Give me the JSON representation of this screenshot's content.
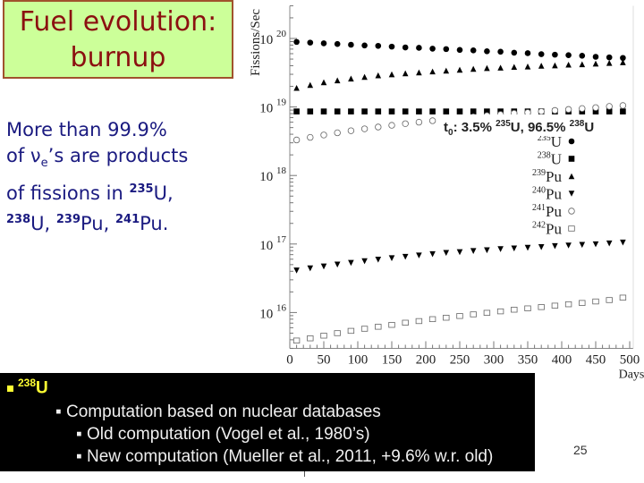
{
  "slide": {
    "title_line1": "Fuel evolution:",
    "title_line2": "burnup",
    "desc": {
      "line1": "More than 99.9%",
      "line2_pre": "of ν",
      "line2_sub": "e",
      "line2_post": "’s are products",
      "line3_pre": "of fissions in ",
      "line3_sup": "235",
      "line3_post": "U,",
      "line4_sup1": "238",
      "line4_t1": "U, ",
      "line4_sup2": "239",
      "line4_t2": "Pu, ",
      "line4_sup3": "241",
      "line4_t3": "Pu."
    },
    "bottom_box": {
      "bullet_icon": "yellow-square-bullet",
      "head_sup": "238",
      "head": "U",
      "items": [
        "▪ Computation based on nuclear databases",
        "▪ Old computation (Vogel et al., 1980’s)",
        "▪ New computation (Mueller et al., 2011, +9.6% w.r. old)"
      ]
    },
    "page_number": "25"
  },
  "chart_data": {
    "type": "scatter",
    "title": "",
    "xlabel": "Days",
    "ylabel": "Fissions/Sec",
    "annotation": {
      "pre": "t",
      "sub": "0",
      "mid1": ": 3.5% ",
      "sup1": "235",
      "mid2": "U, 96.5% ",
      "sup2": "238",
      "post": "U"
    },
    "xlim": [
      0,
      500
    ],
    "ylim": [
      3000000000000000.0,
      3e+20
    ],
    "yscale": "log",
    "grid": false,
    "legend_placement": "center-right",
    "x_ticks": [
      "0",
      "50",
      "100",
      "150",
      "200",
      "250",
      "300",
      "350",
      "400",
      "450",
      "500"
    ],
    "y_ticks": [
      {
        "base": "10",
        "exp": "20"
      },
      {
        "base": "10",
        "exp": "19"
      },
      {
        "base": "10",
        "exp": "18"
      },
      {
        "base": "10",
        "exp": "17"
      },
      {
        "base": "10",
        "exp": "16"
      }
    ],
    "x": [
      10,
      30,
      50,
      70,
      90,
      110,
      130,
      150,
      170,
      190,
      210,
      230,
      250,
      270,
      290,
      310,
      330,
      350,
      370,
      390,
      410,
      430,
      450,
      470,
      490
    ],
    "series": [
      {
        "name_sup": "235",
        "name": "U",
        "marker": "filled-circle",
        "values": [
          8.9e+19,
          8.7e+19,
          8.5e+19,
          8.3e+19,
          8.1e+19,
          7.9e+19,
          7.8e+19,
          7.6e+19,
          7.4e+19,
          7.3e+19,
          7.1e+19,
          7e+19,
          6.8e+19,
          6.7e+19,
          6.5e+19,
          6.4e+19,
          6.2e+19,
          6.1e+19,
          5.9e+19,
          5.8e+19,
          5.7e+19,
          5.6e+19,
          5.4e+19,
          5.3e+19,
          5.2e+19
        ]
      },
      {
        "name_sup": "238",
        "name": "U",
        "marker": "filled-square",
        "values": [
          8.6e+18,
          8.6e+18,
          8.6e+18,
          8.6e+18,
          8.6e+18,
          8.6e+18,
          8.6e+18,
          8.6e+18,
          8.6e+18,
          8.6e+18,
          8.6e+18,
          8.6e+18,
          8.6e+18,
          8.6e+18,
          8.6e+18,
          8.6e+18,
          8.6e+18,
          8.6e+18,
          8.6e+18,
          8.6e+18,
          8.6e+18,
          8.6e+18,
          8.6e+18,
          8.6e+18,
          8.6e+18
        ]
      },
      {
        "name_sup": "239",
        "name": "Pu",
        "marker": "filled-triangle-up",
        "values": [
          1.9e+19,
          2.1e+19,
          2.3e+19,
          2.45e+19,
          2.6e+19,
          2.75e+19,
          2.9e+19,
          3e+19,
          3.1e+19,
          3.2e+19,
          3.3e+19,
          3.4e+19,
          3.5e+19,
          3.6e+19,
          3.7e+19,
          3.75e+19,
          3.85e+19,
          3.9e+19,
          4e+19,
          4.05e+19,
          4.15e+19,
          4.2e+19,
          4.3e+19,
          4.4e+19,
          4.5e+19
        ]
      },
      {
        "name_sup": "240",
        "name": "Pu",
        "marker": "filled-triangle-down",
        "values": [
          4.1e+16,
          4.4e+16,
          4.7e+16,
          5e+16,
          5.3e+16,
          5.6e+16,
          5.9e+16,
          6.2e+16,
          6.5e+16,
          6.8e+16,
          7.1e+16,
          7.4e+16,
          7.6e+16,
          7.9e+16,
          8.1e+16,
          8.4e+16,
          8.6e+16,
          8.8e+16,
          9e+16,
          9.3e+16,
          9.5e+16,
          9.7e+16,
          9.9e+16,
          1.02e+17,
          1.05e+17
        ]
      },
      {
        "name_sup": "241",
        "name": "Pu",
        "marker": "open-circle",
        "values": [
          3.3e+18,
          3.6e+18,
          3.9e+18,
          4.2e+18,
          4.5e+18,
          4.8e+18,
          5.1e+18,
          5.4e+18,
          5.7e+18,
          6e+18,
          6.3e+18,
          6.6e+18,
          6.9e+18,
          7.2e+18,
          7.5e+18,
          7.8e+18,
          8.1e+18,
          8.3e+18,
          8.6e+18,
          8.9e+18,
          9.2e+18,
          9.5e+18,
          9.8e+18,
          1.02e+19,
          1.05e+19
        ]
      },
      {
        "name_sup": "242",
        "name": "Pu",
        "marker": "open-square",
        "values": [
          3900000000000000.0,
          4200000000000000.0,
          4600000000000000.0,
          5000000000000000.0,
          5400000000000000.0,
          5800000000000000.0,
          6200000000000000.0,
          6600000000000000.0,
          7100000000000000.0,
          7500000000000000.0,
          8000000000000000.0,
          8400000000000000.0,
          8900000000000000.0,
          9400000000000000.0,
          9900000000000000.0,
          1.04e+16,
          1.1e+16,
          1.15e+16,
          1.2e+16,
          1.26e+16,
          1.32e+16,
          1.38e+16,
          1.45e+16,
          1.52e+16,
          1.65e+16
        ]
      }
    ]
  }
}
